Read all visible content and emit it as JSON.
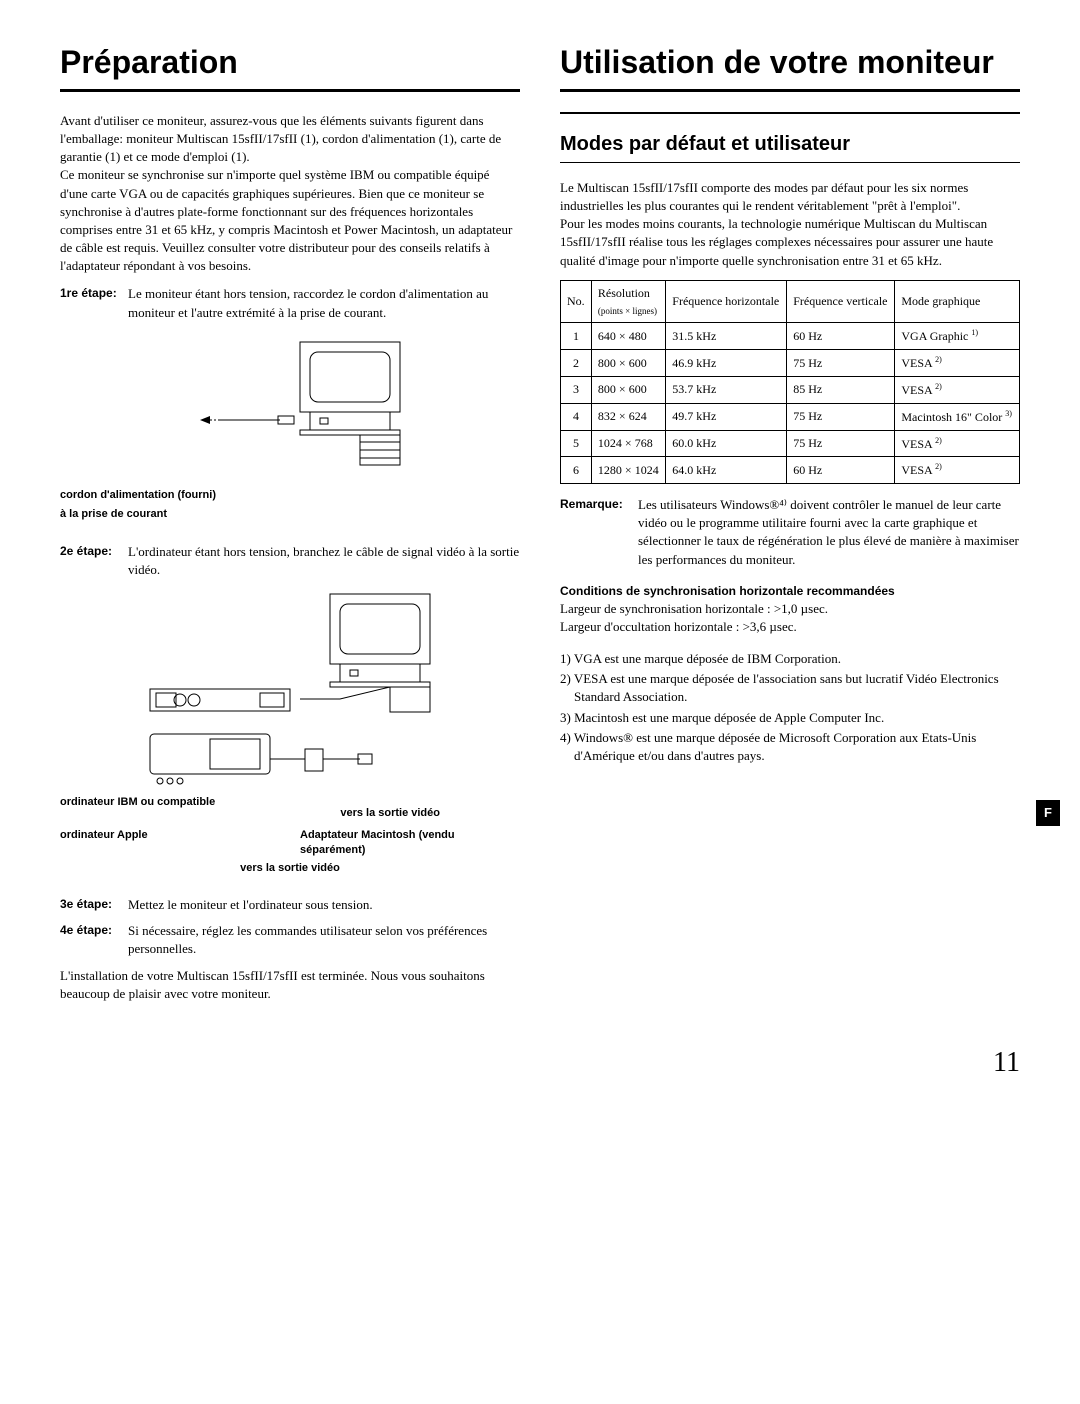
{
  "left": {
    "h1": "Préparation",
    "intro": "Avant d'utiliser ce moniteur, assurez-vous que les éléments suivants figurent dans l'emballage: moniteur Multiscan 15sfII/17sfII (1), cordon d'alimentation (1), carte de garantie (1) et ce mode d'emploi (1).\nCe moniteur se synchronise sur n'importe quel système IBM ou compatible équipé d'une carte VGA ou de capacités graphiques supérieures. Bien que ce moniteur se synchronise à d'autres plate-forme fonctionnant sur des fréquences horizontales comprises entre 31 et 65 kHz, y compris Macintosh et Power Macintosh, un adaptateur de câble est requis. Veuillez consulter votre distributeur pour des conseils relatifs à l'adaptateur répondant à vos besoins.",
    "steps": [
      {
        "label": "1re étape:",
        "text": "Le moniteur étant hors tension, raccordez le cordon d'alimentation au moniteur et l'autre extrémité à la prise de courant."
      },
      {
        "label": "2e étape:",
        "text": "L'ordinateur étant hors tension, branchez le câble de signal vidéo à la sortie vidéo."
      },
      {
        "label": "3e étape:",
        "text": "Mettez le moniteur et l'ordinateur sous tension."
      },
      {
        "label": "4e étape:",
        "text": "Si nécessaire, réglez les commandes utilisateur selon vos préférences personnelles."
      }
    ],
    "fig1": {
      "cord_label": "cordon d'alimentation (fourni)",
      "socket_label": "à la prise de courant"
    },
    "fig2": {
      "ibm_label": "ordinateur IBM ou compatible",
      "to_video": "vers la sortie vidéo",
      "apple_label": "ordinateur Apple",
      "adapter_label": "Adaptateur Macintosh (vendu séparément)"
    },
    "closing": "L'installation de votre Multiscan 15sfII/17sfII est terminée. Nous vous souhaitons beaucoup de plaisir avec votre moniteur."
  },
  "right": {
    "h1": "Utilisation de votre moniteur",
    "h2": "Modes par défaut et utilisateur",
    "intro": "Le Multiscan 15sfII/17sfII comporte des modes par défaut pour les six normes industrielles les plus courantes qui le rendent véritablement \"prêt à l'emploi\".\nPour les modes moins courants, la technologie numérique Multiscan du Multiscan 15sfII/17sfII réalise tous les réglages complexes nécessaires pour assurer une haute qualité d'image pour n'importe quelle synchronisation entre 31 et 65 kHz.",
    "table": {
      "headers": {
        "no": "No.",
        "res": "Résolution",
        "res_sub": "(points × lignes)",
        "hfreq": "Fréquence horizontale",
        "vfreq": "Fréquence verticale",
        "mode": "Mode graphique"
      },
      "rows": [
        {
          "no": "1",
          "res": "640 × 480",
          "h": "31.5 kHz",
          "v": "60 Hz",
          "mode": "VGA Graphic",
          "sup": "1)"
        },
        {
          "no": "2",
          "res": "800 × 600",
          "h": "46.9 kHz",
          "v": "75 Hz",
          "mode": "VESA",
          "sup": "2)"
        },
        {
          "no": "3",
          "res": "800 × 600",
          "h": "53.7 kHz",
          "v": "85 Hz",
          "mode": "VESA",
          "sup": "2)"
        },
        {
          "no": "4",
          "res": "832 × 624",
          "h": "49.7 kHz",
          "v": "75 Hz",
          "mode": "Macintosh 16\" Color",
          "sup": "3)"
        },
        {
          "no": "5",
          "res": "1024 × 768",
          "h": "60.0 kHz",
          "v": "75 Hz",
          "mode": "VESA",
          "sup": "2)"
        },
        {
          "no": "6",
          "res": "1280 × 1024",
          "h": "64.0 kHz",
          "v": "60 Hz",
          "mode": "VESA",
          "sup": "2)"
        }
      ]
    },
    "remark_label": "Remarque:",
    "remark_text": "Les utilisateurs Windows®⁴⁾ doivent contrôler le manuel de leur carte vidéo ou le programme utilitaire fourni avec la carte graphique et sélectionner le taux de régénération le plus élevé de manière à maximiser les performances du moniteur.",
    "cond_head": "Conditions de synchronisation horizontale recommandées",
    "cond1": "Largeur de synchronisation horizontale : >1,0 µsec.",
    "cond2": "Largeur d'occultation horizontale : >3,6 µsec.",
    "footnotes": [
      "1) VGA est une marque déposée de IBM Corporation.",
      "2) VESA est une marque déposée de l'association sans but lucratif Vidéo Electronics Standard Association.",
      "3) Macintosh est une marque déposée de Apple Computer Inc.",
      "4) Windows® est une marque déposée de Microsoft Corporation aux Etats-Unis d'Amérique et/ou dans d'autres pays."
    ]
  },
  "side_tab": "F",
  "page_num": "11"
}
